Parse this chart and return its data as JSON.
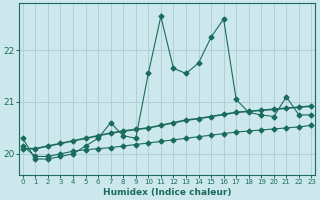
{
  "title": "",
  "xlabel": "Humidex (Indice chaleur)",
  "ylabel": "",
  "bg_color": "#cde8ec",
  "grid_color": "#b0d0d5",
  "line_color": "#1a6b5e",
  "x_values": [
    0,
    1,
    2,
    3,
    4,
    5,
    6,
    7,
    8,
    9,
    10,
    11,
    12,
    13,
    14,
    15,
    16,
    17,
    18,
    19,
    20,
    21,
    22,
    23
  ],
  "y_main": [
    20.3,
    19.9,
    19.9,
    19.95,
    20.0,
    20.15,
    20.3,
    20.6,
    20.35,
    20.3,
    21.55,
    22.65,
    21.65,
    21.55,
    21.75,
    22.25,
    22.6,
    21.05,
    20.8,
    20.75,
    20.72,
    21.1,
    20.75,
    20.75
  ],
  "y_ref": [
    20.1,
    20.1,
    20.15,
    20.2,
    20.25,
    20.3,
    20.35,
    20.4,
    20.44,
    20.47,
    20.5,
    20.55,
    20.6,
    20.65,
    20.68,
    20.72,
    20.76,
    20.8,
    20.82,
    20.84,
    20.86,
    20.88,
    20.9,
    20.92
  ],
  "y_third": [
    20.15,
    19.95,
    19.95,
    20.0,
    20.05,
    20.08,
    20.1,
    20.12,
    20.15,
    20.18,
    20.21,
    20.24,
    20.27,
    20.3,
    20.33,
    20.36,
    20.39,
    20.42,
    20.44,
    20.46,
    20.48,
    20.5,
    20.52,
    20.55
  ],
  "yticks": [
    20,
    21,
    22
  ],
  "xticks": [
    0,
    1,
    2,
    3,
    4,
    5,
    6,
    7,
    8,
    9,
    10,
    11,
    12,
    13,
    14,
    15,
    16,
    17,
    18,
    19,
    20,
    21,
    22,
    23
  ],
  "ylim": [
    19.6,
    22.9
  ],
  "xlim": [
    -0.3,
    23.3
  ],
  "markersize": 2.5
}
